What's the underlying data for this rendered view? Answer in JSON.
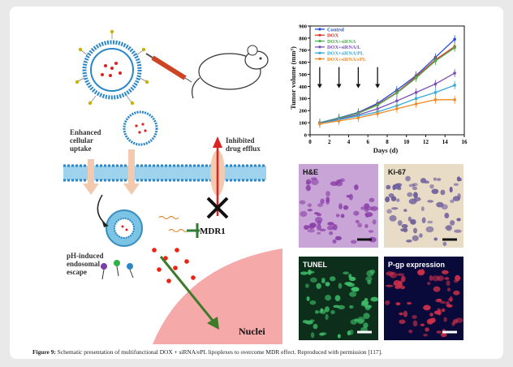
{
  "caption": {
    "label": "Figure 9:",
    "text": "Schematic presentation of multifunctional DOX + siRNA/ePL lipoplexes to overcome MDR effect. Reproduced with permission [117]."
  },
  "schematic": {
    "enhanced_uptake": [
      "Enhanced",
      "cellular",
      "uptake"
    ],
    "inhibited_efflux": [
      "Inhibited",
      "drug efflux"
    ],
    "ph_escape": [
      "pH-induced",
      "endosomal",
      "escape"
    ],
    "mdr1": "MDR1",
    "nuclei": "Nuclei"
  },
  "chart_data": {
    "type": "line",
    "xlabel": "Days (d)",
    "ylabel": "Tumor volume (mm³)",
    "xlim": [
      0,
      16
    ],
    "ylim": [
      0,
      900
    ],
    "xticks": [
      0,
      2,
      4,
      6,
      8,
      10,
      12,
      14,
      16
    ],
    "yticks": [
      0,
      100,
      200,
      300,
      400,
      500,
      600,
      700,
      800,
      900
    ],
    "injection_days": [
      1,
      3,
      5,
      7
    ],
    "legend_position": "top-left",
    "x": [
      1,
      3,
      5,
      7,
      9,
      11,
      13,
      15
    ],
    "series": [
      {
        "name": "Control",
        "color": "#1f4fd6",
        "values": [
          100,
          140,
          185,
          260,
          370,
          490,
          640,
          790
        ]
      },
      {
        "name": "DOX",
        "color": "#e0332b",
        "values": [
          95,
          135,
          180,
          250,
          350,
          480,
          620,
          730
        ]
      },
      {
        "name": "DOX+siRNA",
        "color": "#4caf50",
        "values": [
          98,
          138,
          178,
          245,
          345,
          470,
          610,
          720
        ]
      },
      {
        "name": "DOX+siRNA/L",
        "color": "#7a4fb5",
        "values": [
          95,
          130,
          165,
          215,
          280,
          350,
          420,
          510
        ]
      },
      {
        "name": "DOX+siRNA/PL",
        "color": "#35a9d8",
        "values": [
          92,
          125,
          155,
          190,
          240,
          300,
          350,
          410
        ]
      },
      {
        "name": "DOX+siRNA/ePL",
        "color": "#f08a24",
        "values": [
          90,
          115,
          140,
          175,
          215,
          255,
          290,
          290
        ]
      }
    ]
  },
  "micrographs": [
    {
      "label": "H&E",
      "bg": "#c9a4d6",
      "dot": "#8a3fa8"
    },
    {
      "label": "Ki-67",
      "bg": "#e9dcc7",
      "dot": "#6a5a9a"
    },
    {
      "label": "TUNEL",
      "bg": "#0d2e1a",
      "dot": "#3fbf6a"
    },
    {
      "label": "P-gp expression",
      "bg": "#0a0a3a",
      "dot": "#d0304a"
    }
  ]
}
